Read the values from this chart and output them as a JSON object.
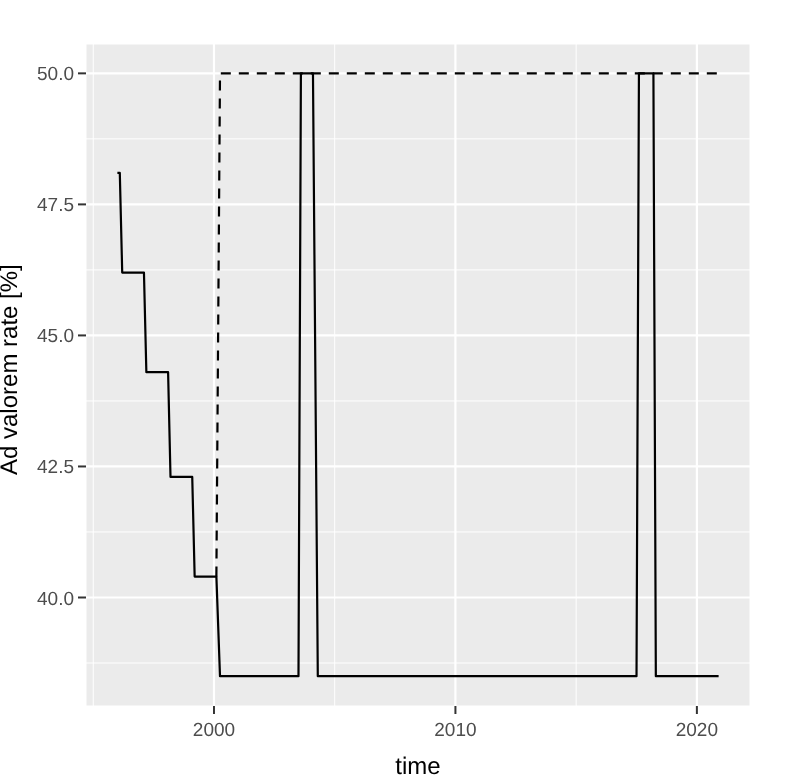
{
  "chart_data": {
    "type": "line",
    "xlabel": "time",
    "ylabel": "Ad valorem rate [%]",
    "xlim": [
      1994.7,
      2022.2
    ],
    "ylim": [
      37.93,
      50.56
    ],
    "xticks": [
      {
        "value": 1995,
        "label": null
      },
      {
        "value": 2000,
        "label": "2000"
      },
      {
        "value": 2005,
        "label": null
      },
      {
        "value": 2010,
        "label": "2010"
      },
      {
        "value": 2015,
        "label": null
      },
      {
        "value": 2020,
        "label": "2020"
      }
    ],
    "yticks": [
      {
        "value": 38.75,
        "label": null
      },
      {
        "value": 40,
        "label": "40.0"
      },
      {
        "value": 41.25,
        "label": null
      },
      {
        "value": 42.5,
        "label": "42.5"
      },
      {
        "value": 43.75,
        "label": null
      },
      {
        "value": 45,
        "label": "45.0"
      },
      {
        "value": 46.25,
        "label": null
      },
      {
        "value": 47.5,
        "label": "47.5"
      },
      {
        "value": 48.75,
        "label": null
      },
      {
        "value": 50,
        "label": "50.0"
      }
    ],
    "grid": true,
    "legend": false,
    "marker": "none",
    "series": [
      {
        "color": "#000000",
        "line_style": "solid",
        "x": [
          1996.0,
          1996.1,
          1996.2,
          1997.1,
          1997.2,
          1998.1,
          1998.2,
          1999.1,
          1999.2,
          2000.1,
          2000.25,
          2003.5,
          2003.6,
          2004.1,
          2004.3,
          2017.5,
          2017.6,
          2018.2,
          2018.3,
          2020.9
        ],
        "values": [
          48.1,
          48.1,
          46.2,
          46.2,
          44.3,
          44.3,
          42.3,
          42.3,
          40.4,
          40.4,
          38.5,
          38.5,
          50,
          50,
          38.5,
          38.5,
          50,
          50,
          38.5,
          38.5
        ]
      },
      {
        "color": "#000000",
        "line_style": "dashed",
        "x": [
          2000.1,
          2000.25,
          2020.9
        ],
        "values": [
          40.4,
          50,
          50
        ]
      }
    ]
  }
}
